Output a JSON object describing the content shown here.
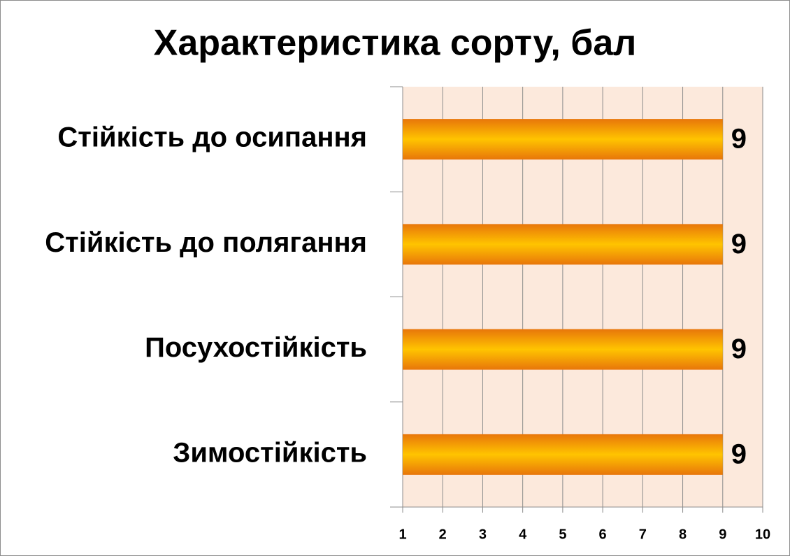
{
  "chart_data": {
    "type": "bar",
    "orientation": "horizontal",
    "title": "Характеристика сорту, бал",
    "categories": [
      "Стійкість до осипання",
      "Стійкість до полягання",
      "Посухостійкість",
      "Зимостійкість"
    ],
    "values": [
      9,
      9,
      9,
      9
    ],
    "color": "#e8760a",
    "xlim": [
      1,
      10
    ],
    "xticks": [
      1,
      2,
      3,
      4,
      5,
      6,
      7,
      8,
      9,
      10
    ],
    "grid": true
  }
}
